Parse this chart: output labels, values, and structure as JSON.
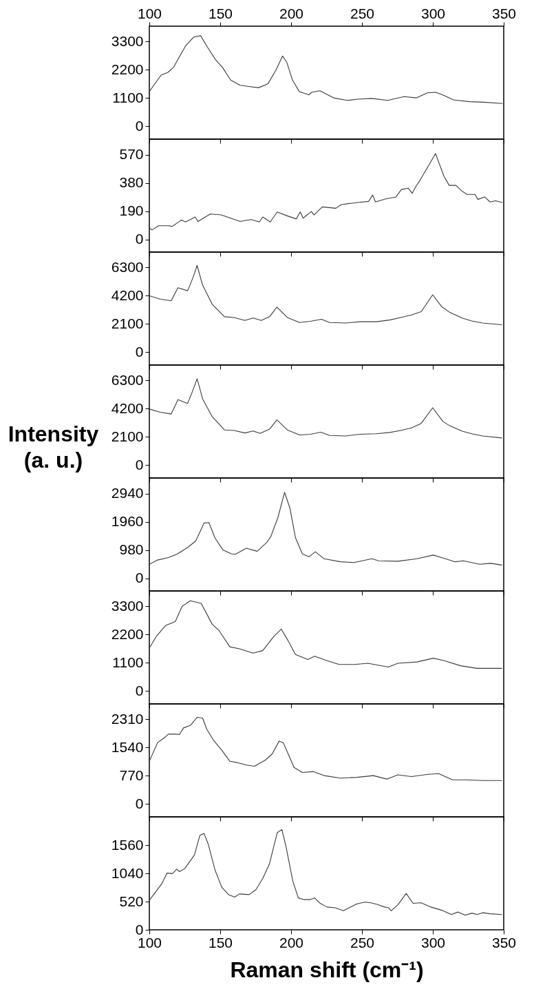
{
  "chart_data": [
    {
      "type": "line",
      "color": "#3a3a3a",
      "xlim": [
        100,
        350
      ],
      "xticks": [
        100,
        150,
        200,
        250,
        300,
        350
      ],
      "x2lim": [
        100,
        350
      ],
      "x2ticks": [
        100,
        150,
        200,
        250,
        300,
        350
      ],
      "ylim": [
        -500,
        3900
      ],
      "yticks": [
        0,
        1100,
        2200,
        3300
      ],
      "grid": false,
      "tick_labels": "y",
      "x": [
        100,
        108.3,
        113,
        117,
        125.6,
        131.4,
        136.2,
        141,
        146.8,
        151.6,
        157.4,
        164,
        170,
        177,
        183.6,
        189.4,
        194,
        197,
        201,
        205.8,
        212.6,
        214.5,
        220.3,
        230,
        239.6,
        247.3,
        256.6,
        268.2,
        279.8,
        288.5,
        296.2,
        302,
        307.8,
        314.6,
        326,
        335.7,
        349
      ],
      "values": [
        1354,
        1996,
        2095,
        2293,
        3133,
        3479,
        3528,
        3083,
        2589,
        2293,
        1799,
        1601,
        1552,
        1502,
        1650,
        2194,
        2737,
        2490,
        1799,
        1354,
        1225,
        1324,
        1384,
        1107,
        1008,
        1057,
        1087,
        1008,
        1156,
        1107,
        1305,
        1324,
        1206,
        1028,
        959,
        939,
        890
      ]
    },
    {
      "type": "line",
      "color": "#3a3a3a",
      "xlim": [
        100,
        350
      ],
      "xticks": [
        100,
        150,
        200,
        250,
        300,
        350
      ],
      "ylim": [
        -85,
        675
      ],
      "yticks": [
        0,
        190,
        380,
        570
      ],
      "grid": false,
      "tick_labels": "y",
      "x": [
        100,
        102,
        106.5,
        114,
        116,
        122.7,
        125.6,
        132.4,
        134.3,
        143,
        150.7,
        164,
        171.8,
        177.6,
        180,
        185.3,
        190.2,
        196.9,
        203.6,
        206.5,
        208.5,
        214.3,
        216.2,
        222,
        231.6,
        235.5,
        247,
        254.7,
        257.6,
        259.5,
        266.3,
        274,
        277.8,
        282.6,
        285.5,
        288.4,
        290.3,
        293.2,
        301.9,
        307.7,
        311.5,
        316.3,
        320.2,
        324,
        329.8,
        331.7,
        336.5,
        340.4,
        344.2,
        349
      ],
      "values": [
        76,
        64,
        92,
        92,
        87,
        131,
        118,
        151,
        121,
        171,
        165,
        121,
        134,
        118,
        151,
        118,
        185,
        160,
        138,
        185,
        143,
        188,
        165,
        219,
        210,
        235,
        249,
        256,
        299,
        252,
        272,
        286,
        336,
        345,
        311,
        362,
        388,
        435,
        578,
        428,
        364,
        364,
        328,
        303,
        303,
        269,
        286,
        252,
        260,
        249
      ]
    },
    {
      "type": "line",
      "color": "#3a3a3a",
      "xlim": [
        100,
        350
      ],
      "xticks": [
        100,
        150,
        200,
        250,
        300,
        350
      ],
      "ylim": [
        -950,
        7450
      ],
      "yticks": [
        0,
        2100,
        4200,
        6300
      ],
      "grid": false,
      "tick_labels": "y",
      "x": [
        100,
        107.7,
        115.4,
        120.2,
        127,
        130.8,
        133.7,
        137.6,
        144.3,
        153,
        159.7,
        167.4,
        173.2,
        179,
        184.8,
        190,
        197.3,
        206,
        213.7,
        221.4,
        227.2,
        238.7,
        248.4,
        260,
        269.6,
        277.3,
        285,
        291.8,
        299.9,
        306.2,
        312,
        320.7,
        327.4,
        335.1,
        348.6
      ],
      "values": [
        4200,
        3956,
        3825,
        4800,
        4575,
        5550,
        6450,
        4988,
        3581,
        2644,
        2588,
        2363,
        2550,
        2363,
        2644,
        3356,
        2588,
        2213,
        2306,
        2456,
        2213,
        2175,
        2269,
        2269,
        2400,
        2588,
        2775,
        3019,
        4275,
        3394,
        2963,
        2550,
        2325,
        2175,
        2044
      ]
    },
    {
      "type": "line",
      "color": "#3a3a3a",
      "xlim": [
        100,
        350
      ],
      "xticks": [
        100,
        150,
        200,
        250,
        300,
        350
      ],
      "ylim": [
        -950,
        7450
      ],
      "yticks": [
        0,
        2100,
        4200,
        6300
      ],
      "grid": false,
      "tick_labels": "y",
      "ylabel": "Intensity\n(a. u.)",
      "x": [
        100,
        107.7,
        115.4,
        120.2,
        127,
        130.8,
        133.7,
        137.6,
        144.3,
        153,
        159.7,
        167.4,
        173.2,
        178.1,
        184.8,
        190,
        197.3,
        206,
        213.7,
        221,
        227.2,
        238.7,
        248.4,
        260,
        269.6,
        277.3,
        285,
        291.8,
        299.9,
        307.2,
        312,
        320.7,
        327.4,
        335.1,
        348.6
      ],
      "values": [
        4181,
        3938,
        3806,
        4875,
        4594,
        5588,
        6431,
        4931,
        3619,
        2625,
        2588,
        2400,
        2550,
        2363,
        2681,
        3375,
        2625,
        2250,
        2306,
        2456,
        2213,
        2175,
        2306,
        2344,
        2438,
        2588,
        2775,
        3113,
        4275,
        3244,
        2925,
        2531,
        2344,
        2175,
        2025
      ]
    },
    {
      "type": "line",
      "color": "#3a3a3a",
      "xlim": [
        100,
        350
      ],
      "xticks": [
        100,
        150,
        200,
        250,
        300,
        350
      ],
      "ylim": [
        -440,
        3480
      ],
      "yticks": [
        0,
        980,
        1960,
        2940
      ],
      "grid": false,
      "tick_labels": "y",
      "x": [
        100,
        105.8,
        113.5,
        119.3,
        127,
        132.8,
        138.6,
        142,
        146.3,
        152,
        157.8,
        160.7,
        168.4,
        176.1,
        182.8,
        185.7,
        190.6,
        195.4,
        199.2,
        203.1,
        207.9,
        212.7,
        217.1,
        223.3,
        234.8,
        244.4,
        257,
        261.8,
        275.3,
        288.8,
        300.3,
        306.1,
        315.7,
        321.5,
        333.1,
        340.8,
        348.6
      ],
      "values": [
        486,
        633,
        720,
        833,
        1067,
        1300,
        1917,
        1934,
        1400,
        980,
        850,
        833,
        1041,
        937,
        1240,
        1450,
        2088,
        2983,
        2429,
        1406,
        850,
        746,
        919,
        676,
        572,
        546,
        676,
        607,
        590,
        676,
        806,
        720,
        572,
        607,
        486,
        520,
        460
      ]
    },
    {
      "type": "line",
      "color": "#3a3a3a",
      "xlim": [
        100,
        350
      ],
      "xticks": [
        100,
        150,
        200,
        250,
        300,
        350
      ],
      "ylim": [
        -500,
        3900
      ],
      "yticks": [
        0,
        1100,
        2200,
        3300
      ],
      "grid": false,
      "tick_labels": "y",
      "x": [
        100,
        104.8,
        111.6,
        118.3,
        123.1,
        128.9,
        136.6,
        144.3,
        149.1,
        156.8,
        163.6,
        173.2,
        180,
        187.7,
        193.1,
        197.3,
        203.1,
        211.8,
        216.6,
        225.3,
        234,
        244.6,
        254.2,
        268.6,
        275.3,
        288.8,
        300.3,
        308,
        319.6,
        331.2,
        348.6
      ],
      "values": [
        1674,
        2117,
        2560,
        2708,
        3299,
        3516,
        3417,
        2609,
        2363,
        1723,
        1645,
        1477,
        1576,
        2117,
        2413,
        2019,
        1428,
        1231,
        1359,
        1182,
        1034,
        1034,
        1083,
        936,
        1083,
        1133,
        1280,
        1182,
        985,
        886,
        886
      ]
    },
    {
      "type": "line",
      "color": "#3a3a3a",
      "xlim": [
        100,
        350
      ],
      "xticks": [
        100,
        150,
        200,
        250,
        300,
        350
      ],
      "ylim": [
        -350,
        2730
      ],
      "yticks": [
        0,
        770,
        1540,
        2310
      ],
      "grid": false,
      "tick_labels": "y",
      "x": [
        100,
        105.8,
        111.6,
        113.5,
        119.3,
        121.2,
        124.1,
        128.9,
        133.7,
        137.6,
        140.5,
        145.3,
        151.1,
        156.8,
        161.7,
        168.4,
        174.2,
        181.9,
        186.7,
        191.6,
        194.5,
        198.3,
        202.1,
        207.9,
        215.6,
        223.3,
        234.8,
        246.4,
        258,
        267.6,
        275.3,
        284.9,
        296.5,
        304.2,
        313.8,
        323.5,
        335,
        348.6
      ],
      "values": [
        1165,
        1671,
        1839,
        1906,
        1906,
        1893,
        2075,
        2142,
        2364,
        2344,
        2041,
        1738,
        1469,
        1165,
        1132,
        1064,
        1031,
        1199,
        1368,
        1718,
        1671,
        1334,
        997,
        862,
        883,
        775,
        707,
        728,
        775,
        680,
        795,
        748,
        809,
        829,
        660,
        660,
        640,
        640
      ]
    },
    {
      "type": "line",
      "color": "#3a3a3a",
      "xlim": [
        100,
        350
      ],
      "xticks": [
        100,
        150,
        200,
        250,
        300,
        350
      ],
      "ylim": [
        0,
        2080
      ],
      "yticks": [
        0,
        520,
        1040,
        1560
      ],
      "grid": false,
      "xlabel": "Raman shift (cm⁻¹)",
      "x": [
        100,
        108.7,
        112.5,
        116.4,
        119.3,
        121.2,
        125,
        131.8,
        135.7,
        138.6,
        141.5,
        146.3,
        151.1,
        155.9,
        160.2,
        163.6,
        170.4,
        175.2,
        180,
        184.8,
        190.2,
        193.5,
        196.4,
        201.2,
        205.1,
        208.9,
        213.8,
        216.6,
        220.5,
        225.3,
        231.1,
        236.9,
        246.5,
        252.3,
        256.2,
        261,
        265.8,
        268.7,
        270.6,
        275.5,
        281.2,
        286,
        291.8,
        298.6,
        306.3,
        313,
        317.8,
        322.7,
        327.5,
        331.3,
        335.2,
        340,
        348.6
      ],
      "values": [
        543,
        844,
        1045,
        1035,
        1117,
        1072,
        1127,
        1377,
        1742,
        1774,
        1583,
        1104,
        785,
        648,
        602,
        661,
        648,
        739,
        944,
        1218,
        1788,
        1847,
        1537,
        899,
        588,
        557,
        557,
        588,
        488,
        420,
        406,
        351,
        479,
        511,
        497,
        465,
        420,
        406,
        351,
        465,
        671,
        488,
        497,
        420,
        360,
        283,
        328,
        269,
        306,
        283,
        315,
        297,
        283
      ]
    }
  ]
}
